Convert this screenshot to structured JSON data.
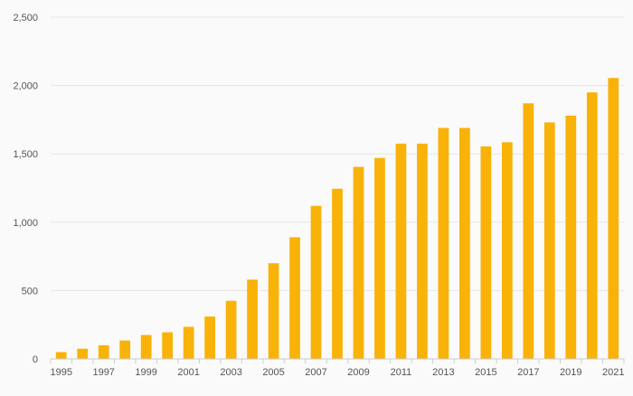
{
  "chart_data": {
    "type": "bar",
    "title": "",
    "xlabel": "",
    "ylabel": "",
    "categories": [
      "1995",
      "1996",
      "1997",
      "1998",
      "1999",
      "2000",
      "2001",
      "2002",
      "2003",
      "2004",
      "2005",
      "2006",
      "2007",
      "2008",
      "2009",
      "2010",
      "2011",
      "2012",
      "2013",
      "2014",
      "2015",
      "2016",
      "2017",
      "2018",
      "2019",
      "2020",
      "2021"
    ],
    "x_tick_labels": [
      "1995",
      "1997",
      "1999",
      "2001",
      "2003",
      "2005",
      "2007",
      "2009",
      "2011",
      "2013",
      "2015",
      "2017",
      "2019",
      "2021"
    ],
    "values": [
      50,
      75,
      100,
      135,
      175,
      195,
      235,
      310,
      425,
      580,
      700,
      890,
      1120,
      1245,
      1405,
      1470,
      1575,
      1575,
      1690,
      1690,
      1555,
      1585,
      1870,
      1730,
      1780,
      1950,
      2055
    ],
    "y_ticks": [
      0,
      500,
      1000,
      1500,
      2000,
      2500
    ],
    "y_tick_labels": [
      "0",
      "500",
      "1,000",
      "1,500",
      "2,000",
      "2,500"
    ],
    "ylim": [
      0,
      2500
    ],
    "grid": true,
    "legend": "none",
    "colors": {
      "bar": "#f9b208",
      "grid": "#e6e6e6",
      "axis": "#cccccc",
      "text": "#555555",
      "background": "#fafafa"
    }
  }
}
